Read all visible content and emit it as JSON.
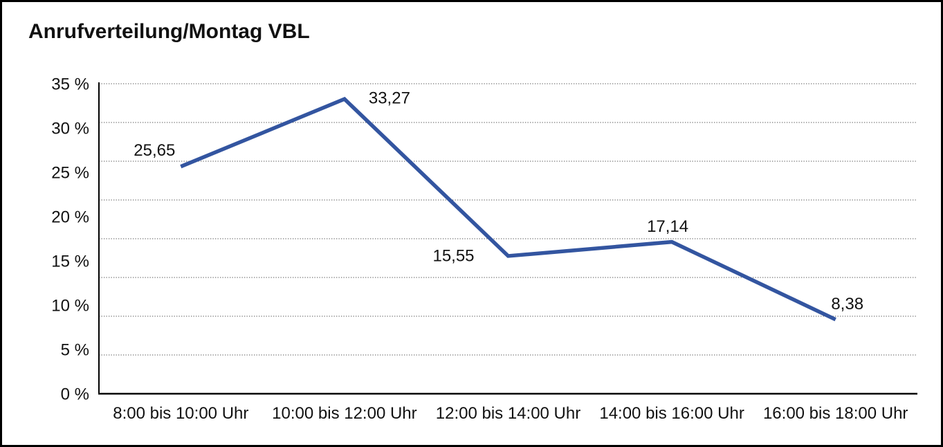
{
  "page": {
    "background": "#ffffff",
    "border_color": "#000000"
  },
  "chart_data": {
    "type": "line",
    "title": "Anrufverteilung/Montag VBL",
    "categories": [
      "8:00 bis 10:00 Uhr",
      "10:00 bis 12:00 Uhr",
      "12:00 bis 14:00 Uhr",
      "14:00 bis 16:00 Uhr",
      "16:00 bis 18:00 Uhr"
    ],
    "values": [
      25.65,
      33.27,
      15.55,
      17.14,
      8.38
    ],
    "point_labels": [
      "25,65",
      "33,27",
      "15,55",
      "17,14",
      "8,38"
    ],
    "y_tick_labels": [
      "35 %",
      "30 %",
      "25 %",
      "20 %",
      "15 %",
      "10 %",
      "5 %",
      "0 %"
    ],
    "ylim": [
      0,
      35
    ],
    "y_tick_step": 5,
    "xlabel": "",
    "ylabel": "",
    "legend": "none",
    "grid": "horizontal-dotted",
    "line_color": "#3355A0",
    "text_color": "#111111",
    "grid_color": "#4d4d4d",
    "axis_color": "#000000"
  }
}
